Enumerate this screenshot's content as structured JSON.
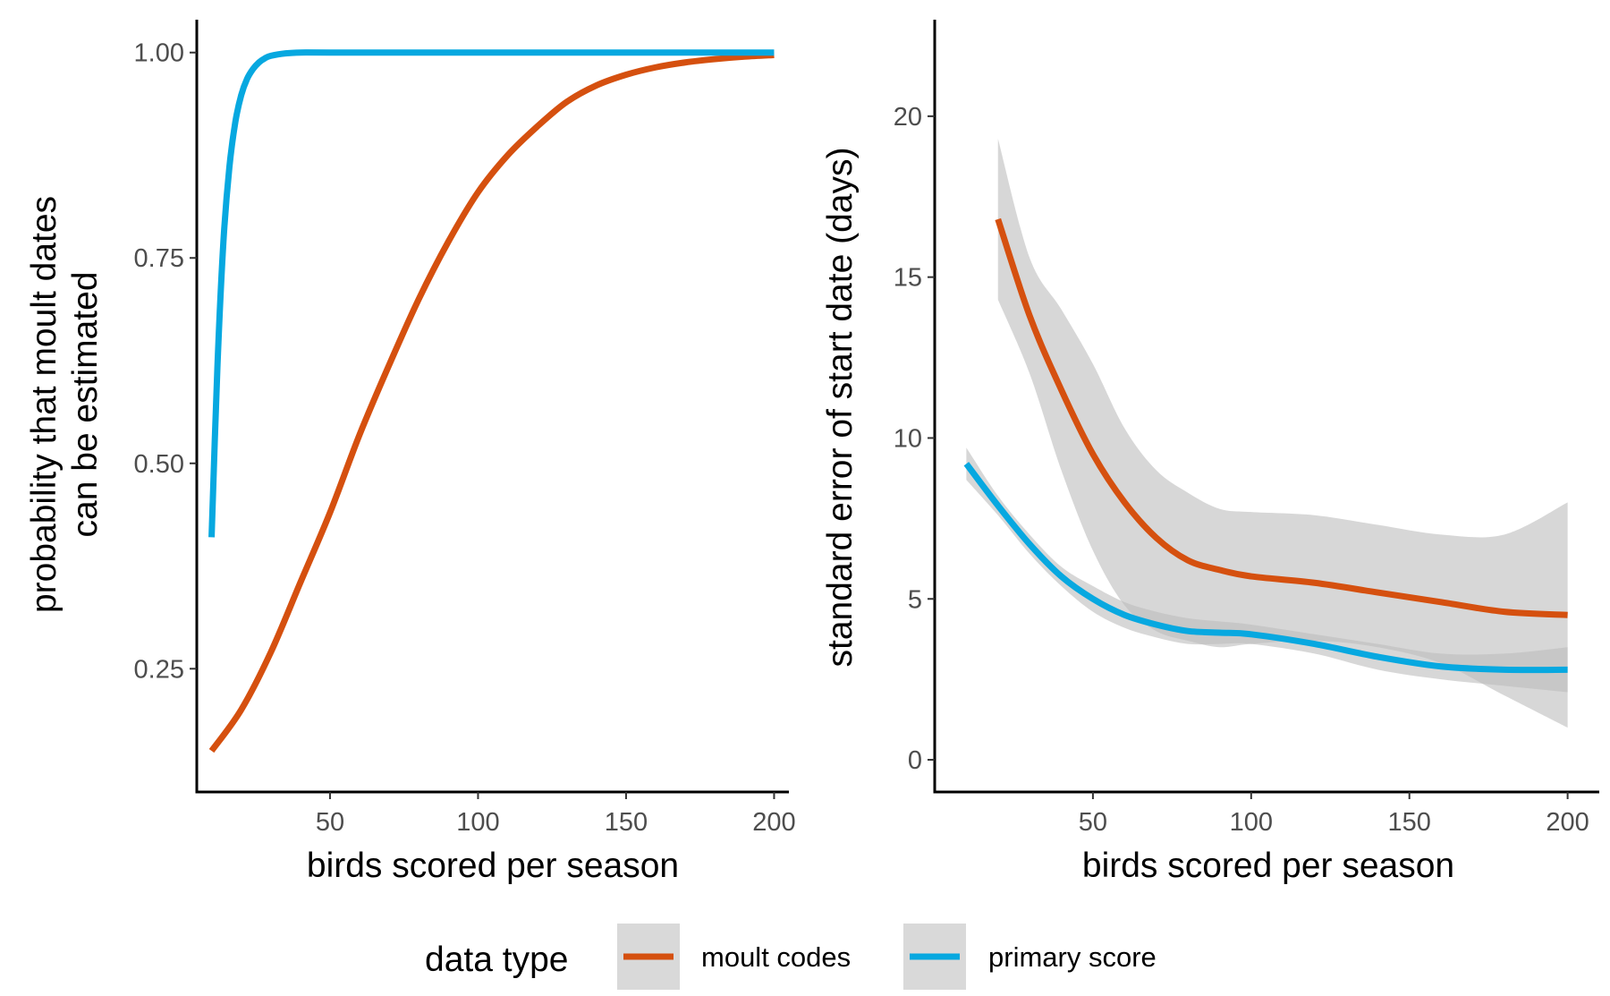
{
  "chart_data": [
    {
      "type": "line",
      "panel": "left",
      "xlabel": "birds scored per season",
      "ylabel_lines": [
        "probability that moult dates",
        "can be estimated"
      ],
      "xlim": [
        5,
        205
      ],
      "ylim": [
        0.1,
        1.04
      ],
      "xticks": [
        50,
        100,
        150,
        200
      ],
      "xtick_labels": [
        "50",
        "100",
        "150",
        "200"
      ],
      "yticks": [
        0.25,
        0.5,
        0.75,
        1.0
      ],
      "ytick_labels": [
        "0.25",
        "0.50",
        "0.75",
        "1.00"
      ],
      "grid": false,
      "series": [
        {
          "name": "moult codes",
          "color": "#D5500F",
          "x": [
            10,
            20,
            30,
            40,
            50,
            60,
            70,
            80,
            90,
            100,
            110,
            120,
            130,
            140,
            150,
            160,
            170,
            180,
            190,
            200
          ],
          "y": [
            0.15,
            0.2,
            0.27,
            0.355,
            0.44,
            0.535,
            0.62,
            0.7,
            0.77,
            0.83,
            0.875,
            0.91,
            0.94,
            0.96,
            0.973,
            0.982,
            0.988,
            0.992,
            0.995,
            0.997
          ]
        },
        {
          "name": "primary score",
          "color": "#07A8E0",
          "x": [
            10,
            12,
            14,
            16,
            18,
            20,
            22,
            24,
            26,
            28,
            30,
            35,
            40,
            50,
            100,
            150,
            200
          ],
          "y": [
            0.41,
            0.62,
            0.77,
            0.86,
            0.915,
            0.948,
            0.968,
            0.98,
            0.988,
            0.993,
            0.996,
            0.999,
            1.0,
            1.0,
            1.0,
            1.0,
            1.0
          ]
        }
      ]
    },
    {
      "type": "line",
      "panel": "right",
      "xlabel": "birds scored per season",
      "ylabel_lines": [
        "standard error of start date (days)"
      ],
      "xlim": [
        0,
        210
      ],
      "ylim": [
        -1,
        23
      ],
      "xticks": [
        50,
        100,
        150,
        200
      ],
      "xtick_labels": [
        "50",
        "100",
        "150",
        "200"
      ],
      "yticks": [
        0,
        5,
        10,
        15,
        20
      ],
      "ytick_labels": [
        "0",
        "5",
        "10",
        "15",
        "20"
      ],
      "grid": false,
      "series": [
        {
          "name": "moult codes",
          "color": "#D5500F",
          "band_color": "#bdbdbd",
          "x": [
            20,
            30,
            40,
            50,
            60,
            70,
            80,
            90,
            100,
            120,
            140,
            160,
            180,
            200
          ],
          "y": [
            16.8,
            13.8,
            11.5,
            9.5,
            8.0,
            6.9,
            6.2,
            5.9,
            5.7,
            5.5,
            5.2,
            4.9,
            4.6,
            4.5
          ],
          "lower": [
            14.3,
            12.0,
            9.0,
            6.5,
            4.8,
            4.0,
            3.7,
            3.5,
            3.6,
            3.7,
            3.5,
            3.0,
            2.0,
            1.0
          ],
          "upper": [
            19.3,
            15.6,
            14.0,
            12.3,
            10.3,
            9.0,
            8.3,
            7.8,
            7.7,
            7.6,
            7.3,
            7.0,
            7.0,
            8.0
          ]
        },
        {
          "name": "primary score",
          "color": "#07A8E0",
          "band_color": "#bdbdbd",
          "x": [
            10,
            20,
            30,
            40,
            50,
            60,
            70,
            80,
            90,
            100,
            120,
            140,
            160,
            180,
            200
          ],
          "y": [
            9.2,
            7.9,
            6.7,
            5.7,
            5.0,
            4.5,
            4.2,
            4.0,
            3.95,
            3.9,
            3.6,
            3.2,
            2.9,
            2.8,
            2.8
          ],
          "lower": [
            8.7,
            7.6,
            6.4,
            5.4,
            4.6,
            4.1,
            3.8,
            3.6,
            3.6,
            3.6,
            3.3,
            2.8,
            2.5,
            2.3,
            2.1
          ],
          "upper": [
            9.7,
            8.2,
            7.0,
            6.0,
            5.4,
            4.9,
            4.6,
            4.4,
            4.3,
            4.2,
            3.9,
            3.6,
            3.3,
            3.3,
            3.5
          ]
        }
      ]
    }
  ],
  "legend": {
    "title": "data type",
    "placement": "bottom",
    "items": [
      {
        "label": "moult codes",
        "color": "#D5500F"
      },
      {
        "label": "primary score",
        "color": "#07A8E0"
      }
    ]
  }
}
